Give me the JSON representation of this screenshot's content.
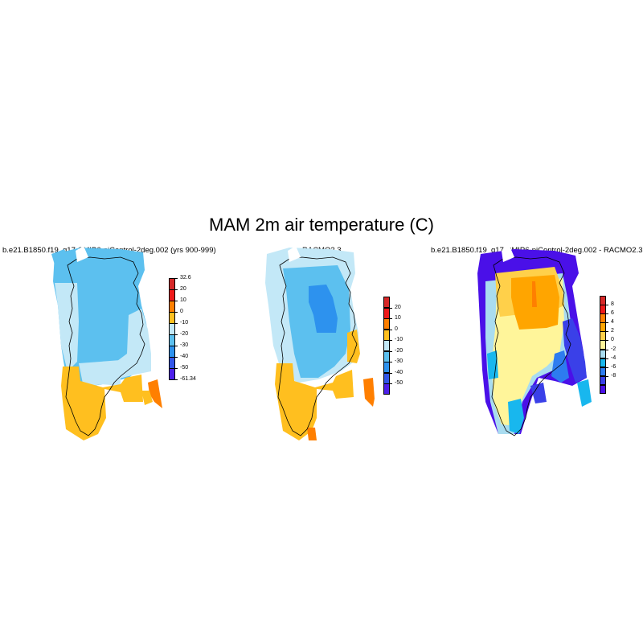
{
  "title": "MAM 2m air temperature (C)",
  "panels": [
    {
      "title": "b.e21.B1850.f19_g17.CMIP6-piControl-2deg.002 (yrs 900-999)",
      "colorbar": {
        "labels": [
          "32.6",
          "20",
          "10",
          "0",
          "-10",
          "-20",
          "-30",
          "-40",
          "-50",
          "-61.34"
        ],
        "colors": [
          "#d62828",
          "#ee1a1a",
          "#ff7f00",
          "#ffbf1f",
          "#c3e8f7",
          "#5cc0ef",
          "#2d92ee",
          "#3256e8",
          "#4d1fea"
        ]
      }
    },
    {
      "title": "RACMO2.3",
      "colorbar": {
        "labels": [
          "20",
          "10",
          "0",
          "-10",
          "-20",
          "-30",
          "-40",
          "-50"
        ],
        "colors": [
          "#d62828",
          "#ee1a1a",
          "#ff7f00",
          "#ffbf1f",
          "#c3e8f7",
          "#5cc0ef",
          "#2d92ee",
          "#3256e8",
          "#4d1fea"
        ]
      }
    },
    {
      "title": "b.e21.B1850.f19_g17.CMIP6-piControl-2deg.002 - RACMO2.3",
      "colorbar": {
        "labels": [
          "8",
          "6",
          "4",
          "2",
          "0",
          "-2",
          "-4",
          "-6",
          "-8"
        ],
        "colors": [
          "#d62828",
          "#ee1a1a",
          "#ff7f00",
          "#ffa500",
          "#ffd04a",
          "#fff59a",
          "#a9dcf0",
          "#18b7ee",
          "#2d7cf0",
          "#3a40e8",
          "#4a10e8"
        ]
      }
    }
  ]
}
